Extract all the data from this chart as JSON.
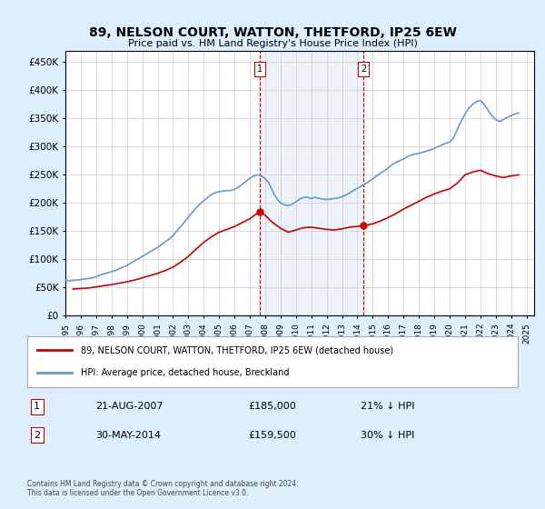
{
  "title": "89, NELSON COURT, WATTON, THETFORD, IP25 6EW",
  "subtitle": "Price paid vs. HM Land Registry's House Price Index (HPI)",
  "legend_line1": "89, NELSON COURT, WATTON, THETFORD, IP25 6EW (detached house)",
  "legend_line2": "HPI: Average price, detached house, Breckland",
  "footnote": "Contains HM Land Registry data © Crown copyright and database right 2024.\nThis data is licensed under the Open Government Licence v3.0.",
  "transaction1_label": "1",
  "transaction1_date": "21-AUG-2007",
  "transaction1_price": "£185,000",
  "transaction1_hpi": "21% ↓ HPI",
  "transaction2_label": "2",
  "transaction2_date": "30-MAY-2014",
  "transaction2_price": "£159,500",
  "transaction2_hpi": "30% ↓ HPI",
  "vline1_x": 2007.64,
  "vline2_x": 2014.41,
  "marker1_red_x": 2007.64,
  "marker1_red_y": 185000,
  "marker2_red_x": 2014.41,
  "marker2_red_y": 159500,
  "ylim": [
    0,
    470000
  ],
  "xlim_start": 1995.0,
  "xlim_end": 2025.5,
  "yticks": [
    0,
    50000,
    100000,
    150000,
    200000,
    250000,
    300000,
    350000,
    400000,
    450000
  ],
  "ytick_labels": [
    "£0",
    "£50K",
    "£100K",
    "£150K",
    "£200K",
    "£250K",
    "£300K",
    "£350K",
    "£400K",
    "£450K"
  ],
  "xticks": [
    1995,
    1996,
    1997,
    1998,
    1999,
    2000,
    2001,
    2002,
    2003,
    2004,
    2005,
    2006,
    2007,
    2008,
    2009,
    2010,
    2011,
    2012,
    2013,
    2014,
    2015,
    2016,
    2017,
    2018,
    2019,
    2020,
    2021,
    2022,
    2023,
    2024,
    2025
  ],
  "hpi_color": "#6699cc",
  "price_color": "#cc0000",
  "vline_color": "#cc0000",
  "background_color": "#ddeeff",
  "plot_bg_color": "#ffffff",
  "hpi_data_x": [
    1995.0,
    1995.25,
    1995.5,
    1995.75,
    1996.0,
    1996.25,
    1996.5,
    1996.75,
    1997.0,
    1997.25,
    1997.5,
    1997.75,
    1998.0,
    1998.25,
    1998.5,
    1998.75,
    1999.0,
    1999.25,
    1999.5,
    1999.75,
    2000.0,
    2000.25,
    2000.5,
    2000.75,
    2001.0,
    2001.25,
    2001.5,
    2001.75,
    2002.0,
    2002.25,
    2002.5,
    2002.75,
    2003.0,
    2003.25,
    2003.5,
    2003.75,
    2004.0,
    2004.25,
    2004.5,
    2004.75,
    2005.0,
    2005.25,
    2005.5,
    2005.75,
    2006.0,
    2006.25,
    2006.5,
    2006.75,
    2007.0,
    2007.25,
    2007.5,
    2007.75,
    2008.0,
    2008.25,
    2008.5,
    2008.75,
    2009.0,
    2009.25,
    2009.5,
    2009.75,
    2010.0,
    2010.25,
    2010.5,
    2010.75,
    2011.0,
    2011.25,
    2011.5,
    2011.75,
    2012.0,
    2012.25,
    2012.5,
    2012.75,
    2013.0,
    2013.25,
    2013.5,
    2013.75,
    2014.0,
    2014.25,
    2014.5,
    2014.75,
    2015.0,
    2015.25,
    2015.5,
    2015.75,
    2016.0,
    2016.25,
    2016.5,
    2016.75,
    2017.0,
    2017.25,
    2017.5,
    2017.75,
    2018.0,
    2018.25,
    2018.5,
    2018.75,
    2019.0,
    2019.25,
    2019.5,
    2019.75,
    2020.0,
    2020.25,
    2020.5,
    2020.75,
    2021.0,
    2021.25,
    2021.5,
    2021.75,
    2022.0,
    2022.25,
    2022.5,
    2022.75,
    2023.0,
    2023.25,
    2023.5,
    2023.75,
    2024.0,
    2024.25,
    2024.5
  ],
  "hpi_data_y": [
    63000,
    62000,
    62500,
    63000,
    64000,
    65000,
    66000,
    67000,
    69000,
    72000,
    74000,
    76000,
    78000,
    80000,
    83000,
    86000,
    89000,
    93000,
    97000,
    101000,
    105000,
    109000,
    113000,
    117000,
    121000,
    126000,
    131000,
    136000,
    142000,
    150000,
    158000,
    166000,
    175000,
    183000,
    191000,
    198000,
    204000,
    210000,
    215000,
    218000,
    220000,
    221000,
    222000,
    222000,
    224000,
    228000,
    233000,
    238000,
    244000,
    248000,
    250000,
    248000,
    243000,
    235000,
    220000,
    208000,
    200000,
    197000,
    195000,
    198000,
    202000,
    207000,
    210000,
    210000,
    208000,
    210000,
    208000,
    207000,
    206000,
    207000,
    208000,
    209000,
    211000,
    214000,
    218000,
    222000,
    226000,
    230000,
    234000,
    238000,
    243000,
    248000,
    253000,
    257000,
    262000,
    268000,
    272000,
    275000,
    278000,
    282000,
    285000,
    287000,
    288000,
    290000,
    292000,
    294000,
    297000,
    300000,
    303000,
    306000,
    308000,
    315000,
    330000,
    345000,
    358000,
    368000,
    375000,
    380000,
    382000,
    375000,
    365000,
    355000,
    348000,
    345000,
    348000,
    352000,
    355000,
    358000,
    360000
  ],
  "price_data_x": [
    1995.5,
    1996.0,
    1996.5,
    1997.0,
    1997.5,
    1998.0,
    1998.5,
    1999.0,
    1999.5,
    2000.0,
    2000.5,
    2001.0,
    2001.5,
    2002.0,
    2002.5,
    2003.0,
    2003.5,
    2004.0,
    2004.5,
    2005.0,
    2005.5,
    2006.0,
    2006.5,
    2007.0,
    2007.64,
    2008.0,
    2008.5,
    2009.0,
    2009.5,
    2010.0,
    2010.5,
    2011.0,
    2011.5,
    2012.0,
    2012.5,
    2013.0,
    2013.5,
    2014.41,
    2015.0,
    2015.5,
    2016.0,
    2016.5,
    2017.0,
    2017.5,
    2018.0,
    2018.5,
    2019.0,
    2019.5,
    2020.0,
    2020.5,
    2021.0,
    2021.5,
    2022.0,
    2022.5,
    2023.0,
    2023.5,
    2024.0,
    2024.5
  ],
  "price_data_y": [
    47000,
    48000,
    49000,
    51000,
    53000,
    55000,
    57500,
    60000,
    63000,
    67000,
    71000,
    75000,
    80000,
    86000,
    95000,
    105000,
    118000,
    130000,
    140000,
    148000,
    153000,
    158000,
    165000,
    172000,
    185000,
    178000,
    165000,
    155000,
    148000,
    152000,
    156000,
    157000,
    155000,
    153000,
    152000,
    154000,
    157000,
    159500,
    163000,
    168000,
    174000,
    181000,
    189000,
    196000,
    203000,
    210000,
    216000,
    221000,
    225000,
    235000,
    250000,
    255000,
    258000,
    252000,
    248000,
    245000,
    248000,
    250000
  ]
}
